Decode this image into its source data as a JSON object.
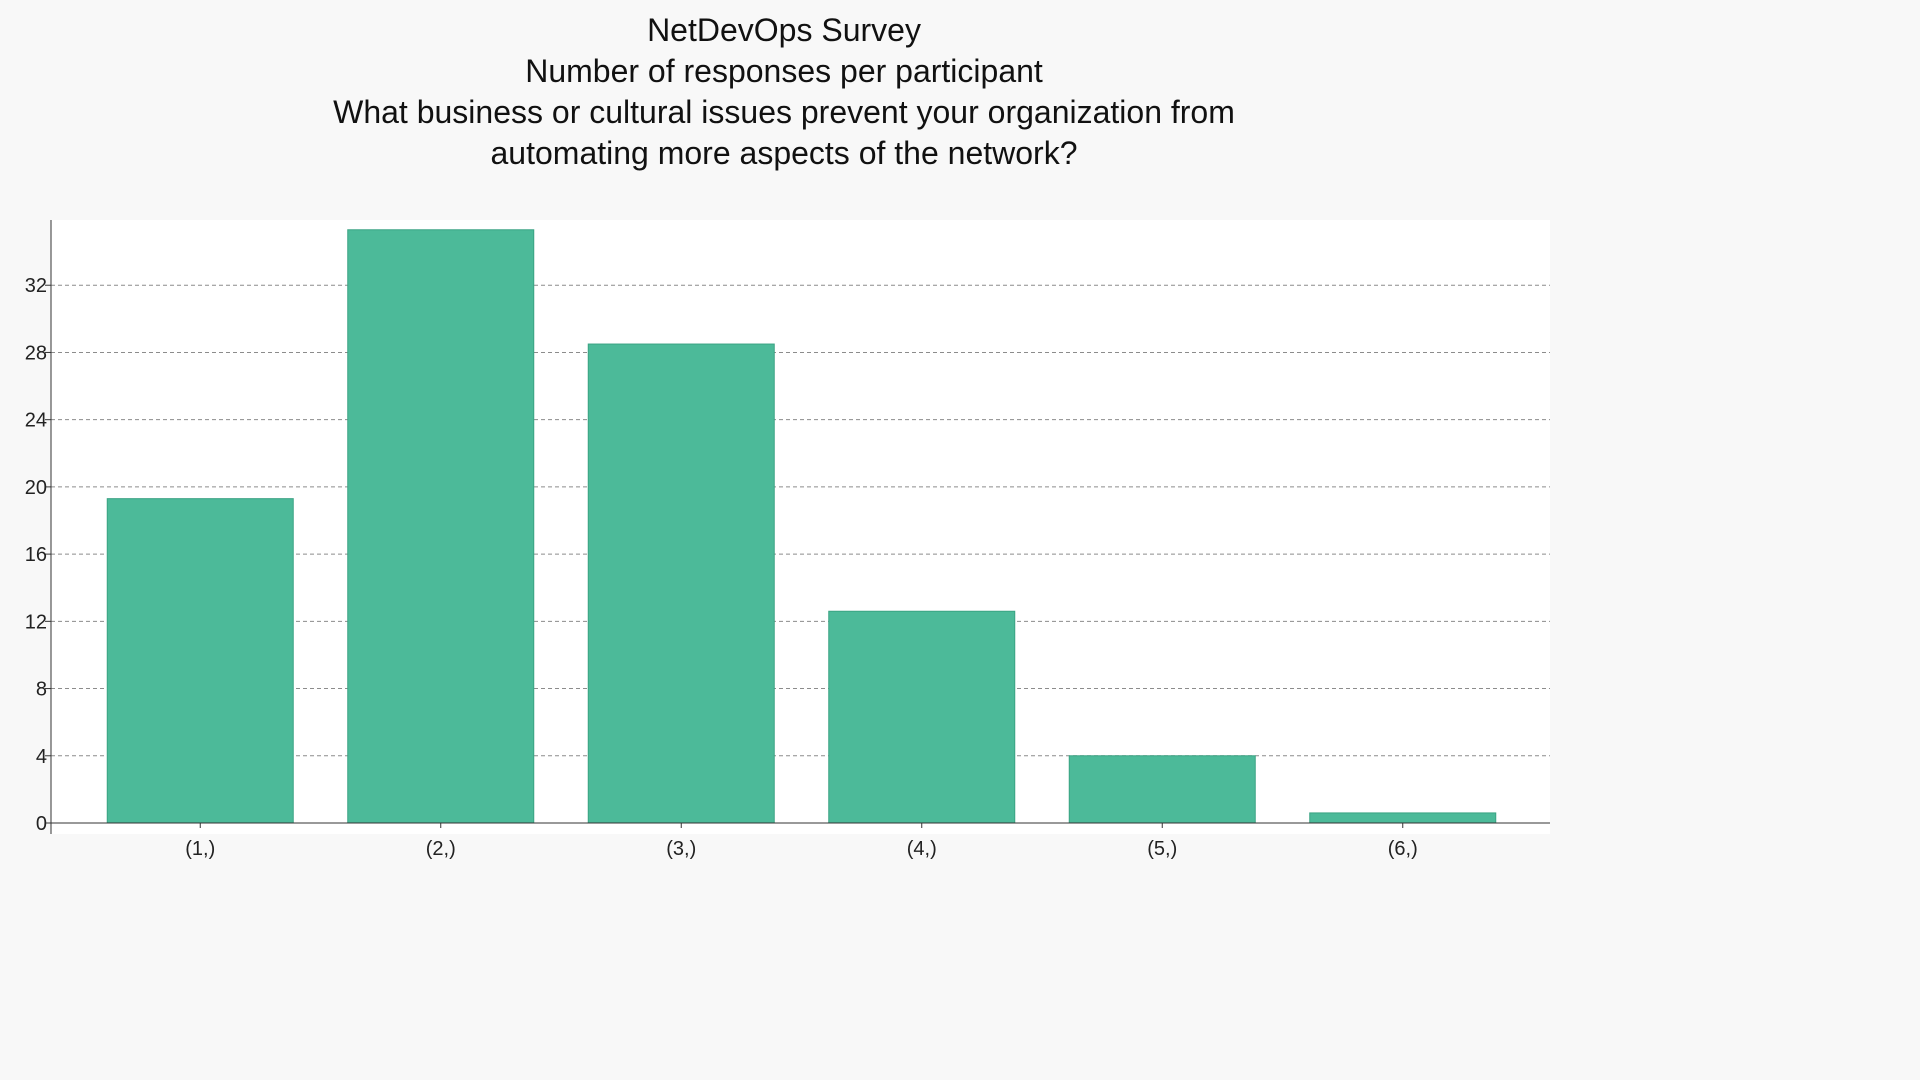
{
  "chart_data": {
    "type": "bar",
    "title": [
      "NetDevOps Survey",
      "Number of responses per participant",
      "What business or cultural issues prevent your organization from",
      "automating more aspects of the network?"
    ],
    "categories": [
      "(1,)",
      "(2,)",
      "(3,)",
      "(4,)",
      "(5,)",
      "(6,)"
    ],
    "values": [
      19.3,
      35.3,
      28.5,
      12.6,
      4,
      0.6
    ],
    "yticks": [
      0,
      4,
      8,
      12,
      16,
      20,
      24,
      28,
      32
    ],
    "ylim": [
      0,
      36
    ],
    "grid": true,
    "bar_color": "#4cba99",
    "xlabel": "",
    "ylabel": ""
  }
}
